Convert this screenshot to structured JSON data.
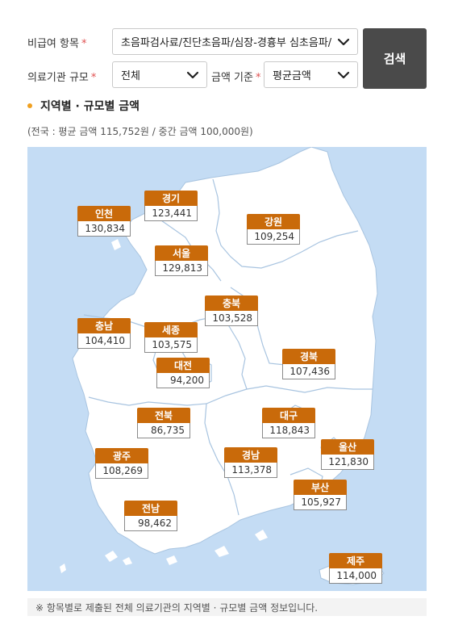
{
  "form": {
    "item_label": "비급여 항목",
    "required_mark": "*",
    "item_value": "초음파검사료/진단초음파/심장-경흉부 심초음파/",
    "scale_label": "의료기관 규모",
    "scale_value": "전체",
    "basis_label": "금액 기준",
    "basis_value": "평균금액",
    "search_label": "검색"
  },
  "section": {
    "title": "지역별 · 규모별 금액",
    "summary": "(전국 : 평균 금액 115,752원 / 중간 금액 100,000원)"
  },
  "regions": [
    {
      "id": "incheon",
      "name": "인천",
      "amount": "130,834"
    },
    {
      "id": "gyeonggi",
      "name": "경기",
      "amount": "123,441"
    },
    {
      "id": "gangwon",
      "name": "강원",
      "amount": "109,254"
    },
    {
      "id": "seoul",
      "name": "서울",
      "amount": "129,813"
    },
    {
      "id": "chungbuk",
      "name": "충북",
      "amount": "103,528"
    },
    {
      "id": "chungnam",
      "name": "충남",
      "amount": "104,410"
    },
    {
      "id": "sejong",
      "name": "세종",
      "amount": "103,575"
    },
    {
      "id": "daejeon",
      "name": "대전",
      "amount": "94,200"
    },
    {
      "id": "gyeongbuk",
      "name": "경북",
      "amount": "107,436"
    },
    {
      "id": "jeonbuk",
      "name": "전북",
      "amount": "86,735"
    },
    {
      "id": "daegu",
      "name": "대구",
      "amount": "118,843"
    },
    {
      "id": "gwangju",
      "name": "광주",
      "amount": "108,269"
    },
    {
      "id": "gyeongnam",
      "name": "경남",
      "amount": "113,378"
    },
    {
      "id": "ulsan",
      "name": "울산",
      "amount": "121,830"
    },
    {
      "id": "busan",
      "name": "부산",
      "amount": "105,927"
    },
    {
      "id": "jeonnam",
      "name": "전남",
      "amount": "98,462"
    },
    {
      "id": "jeju",
      "name": "제주",
      "amount": "114,000"
    }
  ],
  "footnote": "※ 항목별로 제출된 전체 의료기관의 지역별 · 규모별 금액 정보입니다.",
  "colors": {
    "sea": "#c4dcf4",
    "land": "#ffffff",
    "label_bg": "#c96a0a",
    "button_bg": "#4a4a4a",
    "bullet": "#f0a020"
  }
}
